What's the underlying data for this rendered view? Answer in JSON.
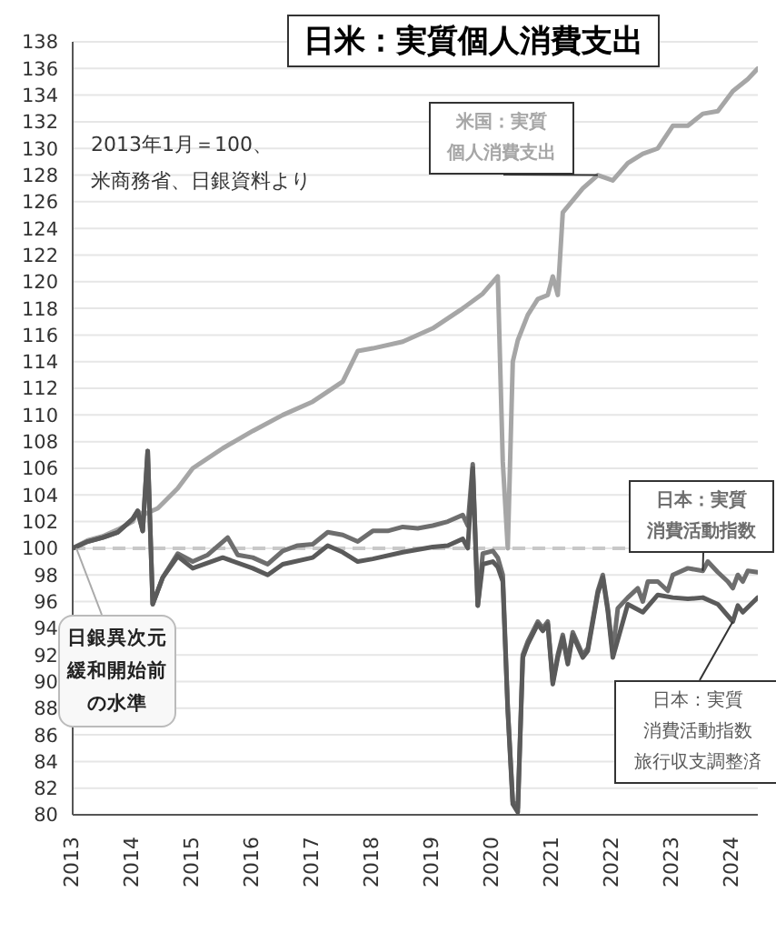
{
  "chart_data": {
    "type": "line",
    "title": "日米：実質個人消費支出",
    "annotations": [
      "2013年1月＝100、",
      "米商務省、日銀資料より"
    ],
    "xlim": [
      "2013-01",
      "2024-06"
    ],
    "xticks": [
      "2013",
      "2014",
      "2015",
      "2016",
      "2017",
      "2018",
      "2019",
      "2020",
      "2021",
      "2022",
      "2023",
      "2024"
    ],
    "ylim": [
      80,
      138
    ],
    "yticks": [
      80,
      82,
      84,
      86,
      88,
      90,
      92,
      94,
      96,
      98,
      100,
      102,
      104,
      106,
      108,
      110,
      112,
      114,
      116,
      118,
      120,
      122,
      124,
      126,
      128,
      130,
      132,
      134,
      136,
      138
    ],
    "grid": "y",
    "marker": "none",
    "line_style": "solid",
    "ref_lines": [
      {
        "axis": "y",
        "value": 100,
        "label": "日銀異次元緩和開始前の水準",
        "color": "#c8c8c8",
        "line_style": "dashed"
      }
    ],
    "series": [
      {
        "name": "米国：実質個人消費支出",
        "color": "#a6a6a6",
        "x": [
          "2013-01",
          "2013-04",
          "2013-07",
          "2013-10",
          "2014-01",
          "2014-02",
          "2014-03",
          "2014-06",
          "2014-10",
          "2015-01",
          "2015-07",
          "2016-01",
          "2016-07",
          "2017-01",
          "2017-07",
          "2017-10",
          "2018-01",
          "2018-07",
          "2019-01",
          "2019-07",
          "2019-11",
          "2020-02",
          "2020-03",
          "2020-04",
          "2020-05",
          "2020-06",
          "2020-08",
          "2020-10",
          "2020-12",
          "2021-01",
          "2021-02",
          "2021-03",
          "2021-05",
          "2021-07",
          "2021-10",
          "2022-01",
          "2022-04",
          "2022-07",
          "2022-10",
          "2023-01",
          "2023-04",
          "2023-07",
          "2023-10",
          "2024-01",
          "2024-04",
          "2024-06"
        ],
        "values": [
          100,
          100.6,
          100.9,
          101.4,
          102,
          102.8,
          102.5,
          103,
          104.5,
          106,
          107.5,
          108.8,
          110,
          111,
          112.5,
          114.8,
          115,
          115.5,
          116.5,
          118,
          119.1,
          120.4,
          106.5,
          100,
          114,
          115.6,
          117.5,
          118.7,
          119,
          120.4,
          119,
          125.2,
          126.1,
          127,
          128,
          127.6,
          128.9,
          129.6,
          130,
          131.7,
          131.7,
          132.6,
          132.8,
          134.3,
          135.2,
          136
        ]
      },
      {
        "name": "日本：実質消費活動指数",
        "color": "#6e6e6e",
        "x": [
          "2013-01",
          "2013-04",
          "2013-07",
          "2013-10",
          "2014-01",
          "2014-02",
          "2014-03",
          "2014-04",
          "2014-05",
          "2014-07",
          "2014-10",
          "2015-01",
          "2015-04",
          "2015-08",
          "2015-10",
          "2016-01",
          "2016-04",
          "2016-07",
          "2016-10",
          "2017-01",
          "2017-04",
          "2017-07",
          "2017-10",
          "2018-01",
          "2018-04",
          "2018-07",
          "2018-10",
          "2019-01",
          "2019-04",
          "2019-07",
          "2019-08",
          "2019-09",
          "2019-10",
          "2019-11",
          "2020-01",
          "2020-02",
          "2020-03",
          "2020-04",
          "2020-05",
          "2020-06",
          "2020-07",
          "2020-08",
          "2020-10",
          "2020-11",
          "2020-12",
          "2021-01",
          "2021-02",
          "2021-03",
          "2021-04",
          "2021-05",
          "2021-07",
          "2021-08",
          "2021-10",
          "2021-11",
          "2021-12",
          "2022-01",
          "2022-02",
          "2022-04",
          "2022-06",
          "2022-07",
          "2022-08",
          "2022-10",
          "2022-12",
          "2023-01",
          "2023-04",
          "2023-07",
          "2023-08",
          "2023-10",
          "2023-12",
          "2024-01",
          "2024-02",
          "2024-03",
          "2024-04",
          "2024-06"
        ],
        "values": [
          100,
          100.5,
          100.8,
          101.2,
          102.2,
          102.8,
          101.3,
          107.3,
          95.8,
          97.8,
          99.6,
          99,
          99.5,
          100.8,
          99.5,
          99.3,
          98.8,
          99.8,
          100.2,
          100.3,
          101.2,
          101,
          100.5,
          101.3,
          101.3,
          101.6,
          101.5,
          101.7,
          102,
          102.5,
          101.7,
          106.3,
          95.7,
          99.6,
          99.8,
          99.3,
          98,
          88,
          81,
          80.5,
          92,
          93,
          94.5,
          94,
          94.5,
          90,
          92,
          93.5,
          91.5,
          93.7,
          92,
          92.5,
          96.8,
          98,
          95.5,
          92.2,
          95.5,
          96.3,
          97,
          96,
          97.5,
          97.5,
          96.8,
          98,
          98.5,
          98.3,
          99,
          98.2,
          97.5,
          97,
          98,
          97.5,
          98.3,
          98.2
        ]
      },
      {
        "name": "日本：実質消費活動指数旅行収支調整済",
        "color": "#5a5a5a",
        "x": [
          "2013-01",
          "2013-04",
          "2013-07",
          "2013-10",
          "2014-01",
          "2014-02",
          "2014-03",
          "2014-04",
          "2014-05",
          "2014-07",
          "2014-10",
          "2015-01",
          "2015-07",
          "2016-01",
          "2016-04",
          "2016-07",
          "2017-01",
          "2017-04",
          "2017-07",
          "2017-10",
          "2018-01",
          "2018-07",
          "2019-01",
          "2019-04",
          "2019-07",
          "2019-08",
          "2019-09",
          "2019-10",
          "2019-11",
          "2020-01",
          "2020-02",
          "2020-03",
          "2020-04",
          "2020-05",
          "2020-06",
          "2020-07",
          "2020-08",
          "2020-10",
          "2020-11",
          "2020-12",
          "2021-01",
          "2021-02",
          "2021-03",
          "2021-04",
          "2021-05",
          "2021-07",
          "2021-08",
          "2021-10",
          "2021-11",
          "2021-12",
          "2022-01",
          "2022-04",
          "2022-07",
          "2022-10",
          "2023-01",
          "2023-04",
          "2023-07",
          "2023-10",
          "2024-01",
          "2024-02",
          "2024-03",
          "2024-06"
        ],
        "values": [
          100,
          100.5,
          100.8,
          101.2,
          102.2,
          102.8,
          101.3,
          107.3,
          95.8,
          97.8,
          99.4,
          98.5,
          99.3,
          98.5,
          98,
          98.8,
          99.3,
          100.2,
          99.7,
          99,
          99.2,
          99.7,
          100.1,
          100.2,
          100.7,
          100,
          106,
          95.7,
          98.8,
          99,
          98.6,
          97.5,
          87.8,
          80.8,
          80.2,
          91.8,
          92.8,
          94.3,
          93.8,
          94.3,
          89.8,
          91.8,
          93.3,
          91.3,
          93.5,
          91.8,
          92.3,
          96.6,
          97.8,
          95.3,
          91.8,
          95.8,
          95.2,
          96.5,
          96.3,
          96.2,
          96.3,
          95.8,
          94.5,
          95.7,
          95.2,
          96.3
        ]
      }
    ]
  }
}
